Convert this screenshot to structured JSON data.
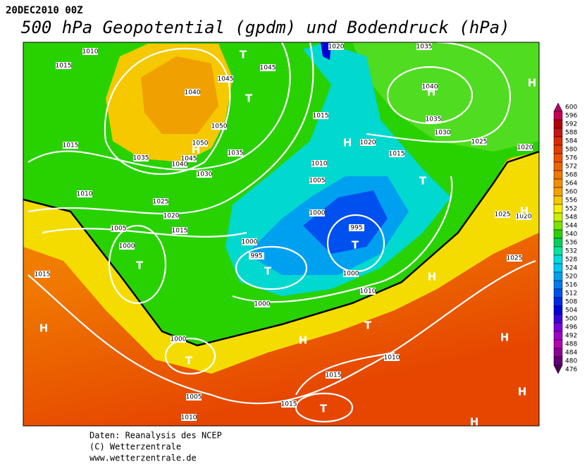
{
  "header": {
    "timestamp": "20DEC2010 00Z",
    "title": "500 hPa Geopotential (gpdm) und Bodendruck (hPa)"
  },
  "scale": {
    "labels": [
      600,
      596,
      592,
      588,
      584,
      580,
      576,
      572,
      568,
      564,
      560,
      556,
      552,
      548,
      544,
      540,
      536,
      532,
      528,
      524,
      520,
      516,
      512,
      508,
      504,
      500,
      496,
      492,
      488,
      484,
      480,
      476
    ],
    "colors": [
      "#b4006e",
      "#c80050",
      "#b40000",
      "#c81414",
      "#dc2800",
      "#e63c00",
      "#f05000",
      "#f06400",
      "#f07800",
      "#f58c00",
      "#f5a000",
      "#f5c800",
      "#f5f000",
      "#c8f000",
      "#78e600",
      "#28d200",
      "#00d25a",
      "#00e6a0",
      "#00dcdc",
      "#00c8f0",
      "#00a0f0",
      "#0078f0",
      "#0050f0",
      "#0028e6",
      "#0000dc",
      "#3c00dc",
      "#7800dc",
      "#a000c8",
      "#b400b4",
      "#8c0096",
      "#640078",
      "#50005a"
    ]
  },
  "map": {
    "isobar_labels": [
      1010,
      1015,
      1020,
      1035,
      1045,
      1045,
      1040,
      1050,
      1050,
      1045,
      1040,
      1035,
      1035,
      1030,
      1015,
      1010,
      1025,
      1020,
      1015,
      1005,
      1000,
      1000,
      995,
      1000,
      1015,
      1010,
      1005,
      1000,
      995,
      1000,
      1010,
      1020,
      1015,
      1035,
      1030,
      1025,
      1020,
      1040,
      1025,
      1020,
      1025,
      1015,
      1000,
      1005,
      1010,
      1010,
      1015,
      1015
    ],
    "centers": [
      "T",
      "T",
      "H",
      "H",
      "H",
      "H",
      "T",
      "H",
      "T",
      "T",
      "T",
      "H",
      "T",
      "H",
      "H",
      "T",
      "H",
      "H",
      "T",
      "H"
    ]
  },
  "footer": {
    "lines": [
      "Daten: Reanalysis des NCEP",
      "(C) Wetterzentrale",
      "www.wetterzentrale.de"
    ]
  }
}
